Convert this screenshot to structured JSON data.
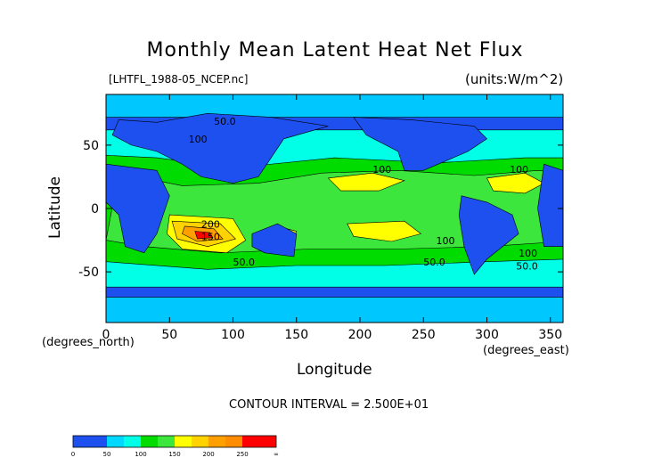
{
  "chart_data": {
    "type": "heatmap",
    "title": "Monthly Mean Latent Heat Net Flux",
    "file_label": "[LHTFL_1988-05_NCEP.nc]",
    "units_label": "(units:W/m^2)",
    "xlabel": "Longitude",
    "ylabel": "Latitude",
    "x_unit_label": "(degrees_east)",
    "y_unit_label": "(degrees_north)",
    "xlim": [
      0,
      360
    ],
    "ylim": [
      -90,
      90
    ],
    "x_ticks": [
      0,
      50,
      100,
      150,
      200,
      250,
      300,
      350
    ],
    "y_ticks": [
      -50,
      0,
      50
    ],
    "contour_interval_text": "CONTOUR INTERVAL = 2.500E+01",
    "contour_labels": [
      {
        "text": "50.0",
        "lon": 85,
        "lat": 66
      },
      {
        "text": "100",
        "lon": 65,
        "lat": 52
      },
      {
        "text": "100",
        "lon": 210,
        "lat": 28
      },
      {
        "text": "200",
        "lon": 75,
        "lat": -15
      },
      {
        "text": "150",
        "lon": 75,
        "lat": -25
      },
      {
        "text": "50.0",
        "lon": 100,
        "lat": -45
      },
      {
        "text": "100",
        "lon": 260,
        "lat": -28
      },
      {
        "text": "50.0",
        "lon": 250,
        "lat": -45
      },
      {
        "text": "100",
        "lon": 318,
        "lat": 28
      },
      {
        "text": "100",
        "lon": 325,
        "lat": -38
      },
      {
        "text": "50.0",
        "lon": 323,
        "lat": -48
      }
    ],
    "colorbar": {
      "bins": [
        "0-25",
        "25-50",
        "50-75",
        "75-100",
        "100-125",
        "125-150",
        "150-175",
        "175-200",
        "200-225",
        "225-250",
        "250-275",
        "275-∞"
      ],
      "colors": [
        "#1e50f0",
        "#1e50f0",
        "#00d8ff",
        "#00ffe6",
        "#00dc00",
        "#3ce63c",
        "#ffff00",
        "#ffd200",
        "#ffa000",
        "#ff8c00",
        "#ff0000",
        "#ff0000"
      ],
      "tick_labels": [
        "0",
        "50",
        "100",
        "150",
        "200",
        "250",
        "∞"
      ]
    },
    "regions": [
      {
        "level": 3,
        "pts": [
          [
            0,
            62
          ],
          [
            360,
            62
          ],
          [
            360,
            -62
          ],
          [
            0,
            -62
          ]
        ]
      },
      {
        "level": 4,
        "pts": [
          [
            0,
            42
          ],
          [
            40,
            40
          ],
          [
            100,
            32
          ],
          [
            180,
            40
          ],
          [
            260,
            36
          ],
          [
            330,
            40
          ],
          [
            360,
            40
          ],
          [
            360,
            -40
          ],
          [
            300,
            -42
          ],
          [
            220,
            -45
          ],
          [
            150,
            -45
          ],
          [
            80,
            -48
          ],
          [
            0,
            -42
          ]
        ]
      },
      {
        "level": 5,
        "pts": [
          [
            10,
            28
          ],
          [
            60,
            18
          ],
          [
            120,
            20
          ],
          [
            170,
            28
          ],
          [
            230,
            30
          ],
          [
            290,
            26
          ],
          [
            340,
            30
          ],
          [
            360,
            28
          ],
          [
            360,
            -26
          ],
          [
            300,
            -30
          ],
          [
            230,
            -32
          ],
          [
            160,
            -32
          ],
          [
            90,
            -35
          ],
          [
            30,
            -30
          ],
          [
            0,
            -25
          ]
        ]
      },
      {
        "level": 6,
        "pts": [
          [
            50,
            -5
          ],
          [
            100,
            -8
          ],
          [
            110,
            -25
          ],
          [
            95,
            -35
          ],
          [
            60,
            -32
          ],
          [
            48,
            -20
          ]
        ]
      },
      {
        "level": 6,
        "pts": [
          [
            175,
            24
          ],
          [
            210,
            28
          ],
          [
            235,
            22
          ],
          [
            215,
            14
          ],
          [
            185,
            14
          ]
        ]
      },
      {
        "level": 6,
        "pts": [
          [
            190,
            -12
          ],
          [
            235,
            -10
          ],
          [
            248,
            -20
          ],
          [
            225,
            -26
          ],
          [
            195,
            -22
          ]
        ]
      },
      {
        "level": 6,
        "pts": [
          [
            300,
            24
          ],
          [
            330,
            28
          ],
          [
            345,
            20
          ],
          [
            330,
            12
          ],
          [
            305,
            14
          ]
        ]
      },
      {
        "level": 6,
        "pts": [
          [
            135,
            -14
          ],
          [
            150,
            -18
          ],
          [
            145,
            -28
          ],
          [
            132,
            -24
          ]
        ]
      },
      {
        "level": 7,
        "pts": [
          [
            52,
            -10
          ],
          [
            90,
            -12
          ],
          [
            102,
            -24
          ],
          [
            80,
            -30
          ],
          [
            56,
            -24
          ]
        ]
      },
      {
        "level": 8,
        "pts": [
          [
            62,
            -14
          ],
          [
            85,
            -16
          ],
          [
            92,
            -24
          ],
          [
            72,
            -26
          ],
          [
            60,
            -20
          ]
        ]
      },
      {
        "level": 9,
        "pts": [
          [
            70,
            -18
          ],
          [
            82,
            -19
          ],
          [
            84,
            -23
          ],
          [
            72,
            -24
          ]
        ]
      },
      {
        "level": 1,
        "pts": [
          [
            0,
            90
          ],
          [
            360,
            90
          ],
          [
            360,
            72
          ],
          [
            0,
            72
          ]
        ]
      },
      {
        "level": 1,
        "pts": [
          [
            0,
            -90
          ],
          [
            360,
            -90
          ],
          [
            360,
            -70
          ],
          [
            0,
            -70
          ]
        ]
      },
      {
        "level": 0,
        "pts": [
          [
            10,
            70
          ],
          [
            40,
            68
          ],
          [
            80,
            75
          ],
          [
            130,
            72
          ],
          [
            175,
            65
          ],
          [
            140,
            55
          ],
          [
            130,
            40
          ],
          [
            120,
            25
          ],
          [
            100,
            20
          ],
          [
            75,
            25
          ],
          [
            60,
            35
          ],
          [
            40,
            45
          ],
          [
            20,
            50
          ],
          [
            5,
            58
          ]
        ]
      },
      {
        "level": 0,
        "pts": [
          [
            195,
            72
          ],
          [
            240,
            70
          ],
          [
            290,
            65
          ],
          [
            300,
            55
          ],
          [
            285,
            45
          ],
          [
            250,
            30
          ],
          [
            235,
            30
          ],
          [
            230,
            45
          ],
          [
            205,
            58
          ]
        ]
      },
      {
        "level": 0,
        "pts": [
          [
            280,
            10
          ],
          [
            300,
            5
          ],
          [
            320,
            -5
          ],
          [
            325,
            -20
          ],
          [
            300,
            -40
          ],
          [
            290,
            -52
          ],
          [
            282,
            -30
          ],
          [
            278,
            -5
          ]
        ]
      },
      {
        "level": 0,
        "pts": [
          [
            345,
            35
          ],
          [
            360,
            30
          ],
          [
            360,
            -30
          ],
          [
            345,
            -30
          ],
          [
            340,
            0
          ]
        ]
      },
      {
        "level": 0,
        "pts": [
          [
            0,
            35
          ],
          [
            40,
            30
          ],
          [
            50,
            10
          ],
          [
            40,
            -20
          ],
          [
            30,
            -35
          ],
          [
            15,
            -30
          ],
          [
            10,
            -5
          ],
          [
            0,
            5
          ]
        ]
      },
      {
        "level": 0,
        "pts": [
          [
            115,
            -20
          ],
          [
            135,
            -12
          ],
          [
            150,
            -20
          ],
          [
            148,
            -38
          ],
          [
            125,
            -35
          ],
          [
            115,
            -30
          ]
        ]
      }
    ]
  }
}
